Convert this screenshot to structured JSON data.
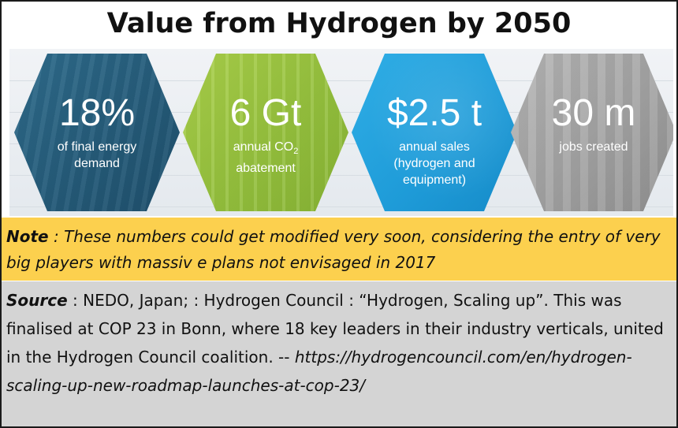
{
  "title": "Value from Hydrogen by 2050",
  "stats": [
    {
      "value": "18%",
      "label_lines": [
        "of final energy",
        "demand"
      ],
      "color": "#245a78"
    },
    {
      "value": "6 Gt",
      "label_lines": [
        "annual CO",
        "abatement"
      ],
      "subscript": "2",
      "color": "#93bf3c"
    },
    {
      "value": "$2.5 t",
      "label_lines": [
        "annual sales",
        "(hydrogen and",
        "equipment)"
      ],
      "color": "#1e9bd8"
    },
    {
      "value": "30 m",
      "label_lines": [
        "jobs created"
      ],
      "color": "#a2a2a2"
    }
  ],
  "note": {
    "label": "Note",
    "text": " : These numbers could get modified very soon, considering the entry of very big players with massiv e plans not envisaged in 2017",
    "background": "#fcd04e"
  },
  "source": {
    "label": "Source",
    "text": " : NEDO, Japan; : Hydrogen Council :  “Hydrogen, Scaling up”.  This was finalised at COP 23 in Bonn, where 18 key leaders in their industry verticals, united in the Hydrogen Council coalition. --",
    "url": "https://hydrogencouncil.com/en/hydrogen-scaling-up-new-roadmap-launches-at-cop-23/",
    "background": "#d4d4d4"
  }
}
